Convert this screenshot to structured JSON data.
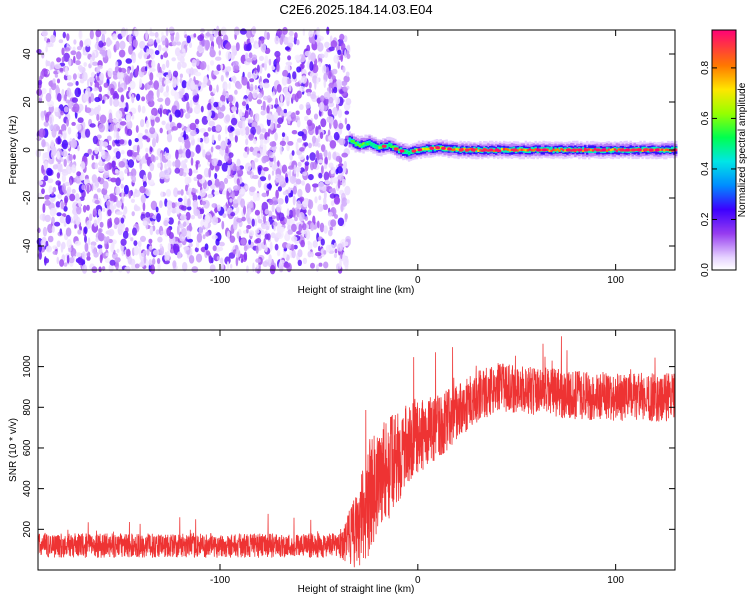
{
  "title": "C2E6.2025.184.14.03.E04",
  "chart_data": [
    {
      "type": "heatmap",
      "xlabel": "Height of straight line (km)",
      "ylabel": "Frequency (Hz)",
      "xlim": [
        -192,
        130
      ],
      "ylim": [
        -50,
        50
      ],
      "xticks": [
        -100,
        0,
        100
      ],
      "xtick_labels": [
        "-100",
        "0",
        "100"
      ],
      "yticks": [
        -40,
        -20,
        0,
        20,
        40
      ],
      "ytick_labels": [
        "-40",
        "-20",
        "0",
        "20",
        "40"
      ],
      "colorbar": {
        "label": "Normalized spectral amplitude",
        "range": [
          0,
          0.95
        ],
        "ticks": [
          0,
          0.2,
          0.4,
          0.6,
          0.8
        ],
        "tick_labels": [
          "0.0",
          "0.2",
          "0.4",
          "0.6",
          "0.8"
        ]
      },
      "noise_region": {
        "x_range": [
          -192,
          -35
        ],
        "typical_amplitude": 0.12
      },
      "signal_trace": {
        "x": [
          -35,
          -30,
          -25,
          -20,
          -15,
          -10,
          -5,
          0,
          10,
          20,
          40,
          60,
          80,
          100,
          130
        ],
        "freq": [
          4,
          2,
          3,
          1,
          2,
          0,
          -1,
          0,
          1,
          0,
          0,
          0,
          0,
          0,
          0
        ],
        "amplitude": [
          0.55,
          0.6,
          0.55,
          0.6,
          0.55,
          0.6,
          0.5,
          0.7,
          0.75,
          0.85,
          0.9,
          0.9,
          0.9,
          0.9,
          0.9
        ]
      },
      "grid": false
    },
    {
      "type": "line",
      "xlabel": "Height of straight line (km)",
      "ylabel": "SNR (10 * v/v)",
      "xlim": [
        -192,
        130
      ],
      "ylim": [
        0,
        1180
      ],
      "xticks": [
        -100,
        0,
        100
      ],
      "xtick_labels": [
        "-100",
        "0",
        "100"
      ],
      "yticks": [
        200,
        400,
        600,
        800,
        1000
      ],
      "ytick_labels": [
        "200",
        "400",
        "600",
        "800",
        "1000"
      ],
      "series": [
        {
          "color": "#ee3333",
          "trend_x": [
            -192,
            -40,
            -30,
            -25,
            -20,
            -15,
            -10,
            -5,
            0,
            5,
            10,
            20,
            30,
            40,
            60,
            80,
            100,
            130
          ],
          "trend_y": [
            120,
            120,
            200,
            350,
            450,
            500,
            550,
            620,
            650,
            680,
            700,
            780,
            850,
            900,
            880,
            860,
            850,
            850
          ],
          "noise_amplitude": [
            60,
            60,
            200,
            280,
            280,
            260,
            220,
            200,
            180,
            170,
            160,
            140,
            130,
            120,
            120,
            120,
            120,
            120
          ]
        }
      ],
      "grid": false
    }
  ]
}
